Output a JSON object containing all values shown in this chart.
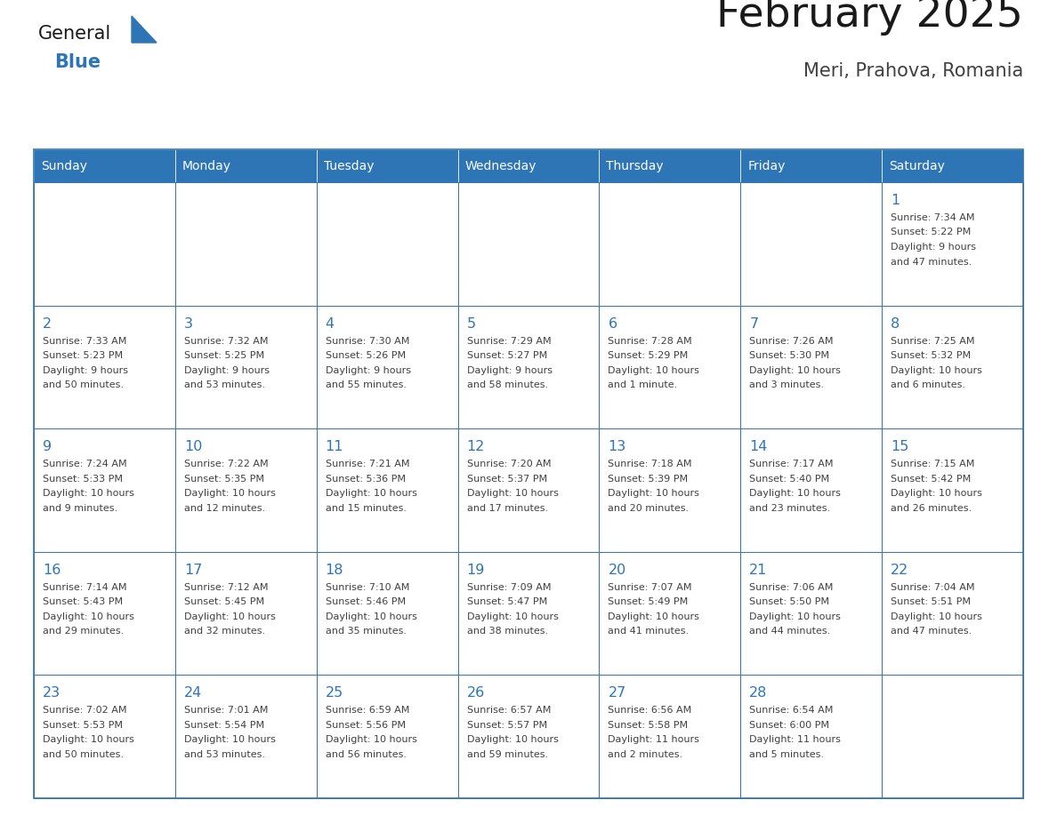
{
  "title": "February 2025",
  "subtitle": "Meri, Prahova, Romania",
  "days_of_week": [
    "Sunday",
    "Monday",
    "Tuesday",
    "Wednesday",
    "Thursday",
    "Friday",
    "Saturday"
  ],
  "header_bg": "#2E75B6",
  "header_text": "#FFFFFF",
  "cell_bg": "#FFFFFF",
  "cell_border": "#2E75B6",
  "day_number_color": "#2E75B6",
  "info_text_color": "#404040",
  "title_color": "#1a1a1a",
  "subtitle_color": "#404040",
  "logo_general_color": "#1a1a1a",
  "logo_blue_color": "#2E75B6",
  "calendar": [
    [
      null,
      null,
      null,
      null,
      null,
      null,
      {
        "day": "1",
        "sunrise": "7:34 AM",
        "sunset": "5:22 PM",
        "daylight_line1": "Daylight: 9 hours",
        "daylight_line2": "and 47 minutes."
      }
    ],
    [
      {
        "day": "2",
        "sunrise": "7:33 AM",
        "sunset": "5:23 PM",
        "daylight_line1": "Daylight: 9 hours",
        "daylight_line2": "and 50 minutes."
      },
      {
        "day": "3",
        "sunrise": "7:32 AM",
        "sunset": "5:25 PM",
        "daylight_line1": "Daylight: 9 hours",
        "daylight_line2": "and 53 minutes."
      },
      {
        "day": "4",
        "sunrise": "7:30 AM",
        "sunset": "5:26 PM",
        "daylight_line1": "Daylight: 9 hours",
        "daylight_line2": "and 55 minutes."
      },
      {
        "day": "5",
        "sunrise": "7:29 AM",
        "sunset": "5:27 PM",
        "daylight_line1": "Daylight: 9 hours",
        "daylight_line2": "and 58 minutes."
      },
      {
        "day": "6",
        "sunrise": "7:28 AM",
        "sunset": "5:29 PM",
        "daylight_line1": "Daylight: 10 hours",
        "daylight_line2": "and 1 minute."
      },
      {
        "day": "7",
        "sunrise": "7:26 AM",
        "sunset": "5:30 PM",
        "daylight_line1": "Daylight: 10 hours",
        "daylight_line2": "and 3 minutes."
      },
      {
        "day": "8",
        "sunrise": "7:25 AM",
        "sunset": "5:32 PM",
        "daylight_line1": "Daylight: 10 hours",
        "daylight_line2": "and 6 minutes."
      }
    ],
    [
      {
        "day": "9",
        "sunrise": "7:24 AM",
        "sunset": "5:33 PM",
        "daylight_line1": "Daylight: 10 hours",
        "daylight_line2": "and 9 minutes."
      },
      {
        "day": "10",
        "sunrise": "7:22 AM",
        "sunset": "5:35 PM",
        "daylight_line1": "Daylight: 10 hours",
        "daylight_line2": "and 12 minutes."
      },
      {
        "day": "11",
        "sunrise": "7:21 AM",
        "sunset": "5:36 PM",
        "daylight_line1": "Daylight: 10 hours",
        "daylight_line2": "and 15 minutes."
      },
      {
        "day": "12",
        "sunrise": "7:20 AM",
        "sunset": "5:37 PM",
        "daylight_line1": "Daylight: 10 hours",
        "daylight_line2": "and 17 minutes."
      },
      {
        "day": "13",
        "sunrise": "7:18 AM",
        "sunset": "5:39 PM",
        "daylight_line1": "Daylight: 10 hours",
        "daylight_line2": "and 20 minutes."
      },
      {
        "day": "14",
        "sunrise": "7:17 AM",
        "sunset": "5:40 PM",
        "daylight_line1": "Daylight: 10 hours",
        "daylight_line2": "and 23 minutes."
      },
      {
        "day": "15",
        "sunrise": "7:15 AM",
        "sunset": "5:42 PM",
        "daylight_line1": "Daylight: 10 hours",
        "daylight_line2": "and 26 minutes."
      }
    ],
    [
      {
        "day": "16",
        "sunrise": "7:14 AM",
        "sunset": "5:43 PM",
        "daylight_line1": "Daylight: 10 hours",
        "daylight_line2": "and 29 minutes."
      },
      {
        "day": "17",
        "sunrise": "7:12 AM",
        "sunset": "5:45 PM",
        "daylight_line1": "Daylight: 10 hours",
        "daylight_line2": "and 32 minutes."
      },
      {
        "day": "18",
        "sunrise": "7:10 AM",
        "sunset": "5:46 PM",
        "daylight_line1": "Daylight: 10 hours",
        "daylight_line2": "and 35 minutes."
      },
      {
        "day": "19",
        "sunrise": "7:09 AM",
        "sunset": "5:47 PM",
        "daylight_line1": "Daylight: 10 hours",
        "daylight_line2": "and 38 minutes."
      },
      {
        "day": "20",
        "sunrise": "7:07 AM",
        "sunset": "5:49 PM",
        "daylight_line1": "Daylight: 10 hours",
        "daylight_line2": "and 41 minutes."
      },
      {
        "day": "21",
        "sunrise": "7:06 AM",
        "sunset": "5:50 PM",
        "daylight_line1": "Daylight: 10 hours",
        "daylight_line2": "and 44 minutes."
      },
      {
        "day": "22",
        "sunrise": "7:04 AM",
        "sunset": "5:51 PM",
        "daylight_line1": "Daylight: 10 hours",
        "daylight_line2": "and 47 minutes."
      }
    ],
    [
      {
        "day": "23",
        "sunrise": "7:02 AM",
        "sunset": "5:53 PM",
        "daylight_line1": "Daylight: 10 hours",
        "daylight_line2": "and 50 minutes."
      },
      {
        "day": "24",
        "sunrise": "7:01 AM",
        "sunset": "5:54 PM",
        "daylight_line1": "Daylight: 10 hours",
        "daylight_line2": "and 53 minutes."
      },
      {
        "day": "25",
        "sunrise": "6:59 AM",
        "sunset": "5:56 PM",
        "daylight_line1": "Daylight: 10 hours",
        "daylight_line2": "and 56 minutes."
      },
      {
        "day": "26",
        "sunrise": "6:57 AM",
        "sunset": "5:57 PM",
        "daylight_line1": "Daylight: 10 hours",
        "daylight_line2": "and 59 minutes."
      },
      {
        "day": "27",
        "sunrise": "6:56 AM",
        "sunset": "5:58 PM",
        "daylight_line1": "Daylight: 11 hours",
        "daylight_line2": "and 2 minutes."
      },
      {
        "day": "28",
        "sunrise": "6:54 AM",
        "sunset": "6:00 PM",
        "daylight_line1": "Daylight: 11 hours",
        "daylight_line2": "and 5 minutes."
      },
      null
    ]
  ]
}
